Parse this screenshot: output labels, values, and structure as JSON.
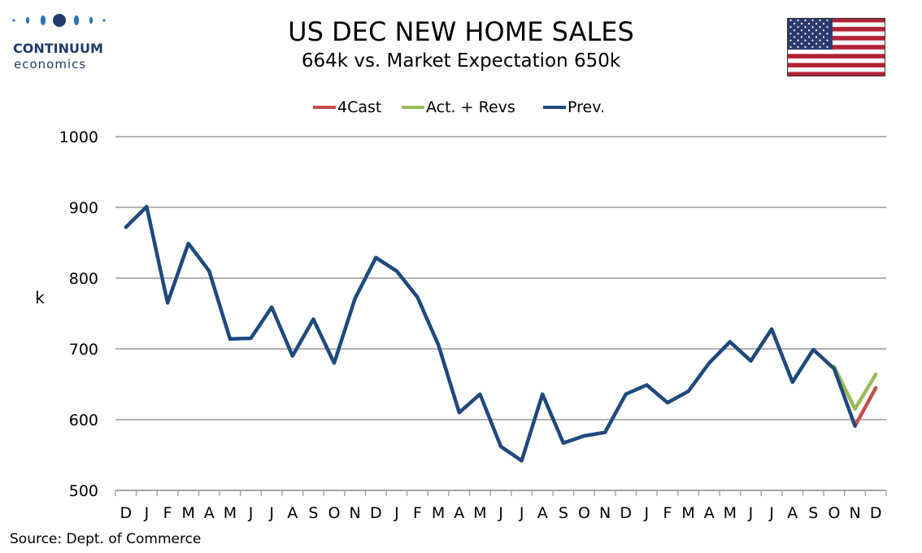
{
  "brand": {
    "name": "CONTINUUM",
    "sub": "economics",
    "color": "#1f3c68"
  },
  "header": {
    "title": "US DEC NEW HOME SALES",
    "subtitle": "664k vs. Market Expectation 650k"
  },
  "flag": {
    "icon": "us-flag-icon"
  },
  "legend": [
    {
      "label": "4Cast",
      "color": "#c0504d"
    },
    {
      "label": "Act. + Revs",
      "color": "#9bbb59"
    },
    {
      "label": "Prev.",
      "color": "#1f497d"
    }
  ],
  "source": "Source: Dept. of Commerce",
  "chart_data": {
    "type": "line",
    "title": "US DEC NEW HOME SALES",
    "subtitle": "664k vs. Market Expectation 650k",
    "ylabel": "k",
    "xlabel": "",
    "ylim": [
      500,
      1000
    ],
    "yticks": [
      500,
      600,
      700,
      800,
      900,
      1000
    ],
    "grid": true,
    "legend_position": "top",
    "categories": [
      "D",
      "J",
      "F",
      "M",
      "A",
      "M",
      "J",
      "J",
      "A",
      "S",
      "O",
      "N",
      "D",
      "J",
      "F",
      "M",
      "A",
      "M",
      "J",
      "J",
      "A",
      "S",
      "O",
      "N",
      "D",
      "J",
      "F",
      "M",
      "A",
      "M",
      "J",
      "J",
      "A",
      "S",
      "O",
      "N",
      "D"
    ],
    "series": [
      {
        "name": "Prev.",
        "color": "#1f497d",
        "values": [
          872,
          901,
          765,
          849,
          810,
          714,
          715,
          759,
          690,
          742,
          680,
          771,
          829,
          810,
          773,
          706,
          610,
          636,
          562,
          542,
          636,
          567,
          577,
          582,
          636,
          649,
          624,
          640,
          680,
          710,
          683,
          728,
          653,
          699,
          672,
          591,
          null
        ]
      },
      {
        "name": "Act. + Revs",
        "color": "#9bbb59",
        "values": [
          null,
          null,
          null,
          null,
          null,
          null,
          null,
          null,
          null,
          null,
          null,
          null,
          null,
          null,
          null,
          null,
          null,
          null,
          null,
          null,
          null,
          null,
          null,
          null,
          null,
          null,
          null,
          null,
          null,
          null,
          null,
          null,
          null,
          null,
          675,
          615,
          664
        ]
      },
      {
        "name": "4Cast",
        "color": "#c0504d",
        "values": [
          null,
          null,
          null,
          null,
          null,
          null,
          null,
          null,
          null,
          null,
          null,
          null,
          null,
          null,
          null,
          null,
          null,
          null,
          null,
          null,
          null,
          null,
          null,
          null,
          null,
          null,
          null,
          null,
          null,
          null,
          null,
          null,
          null,
          null,
          null,
          591,
          645
        ]
      }
    ]
  }
}
